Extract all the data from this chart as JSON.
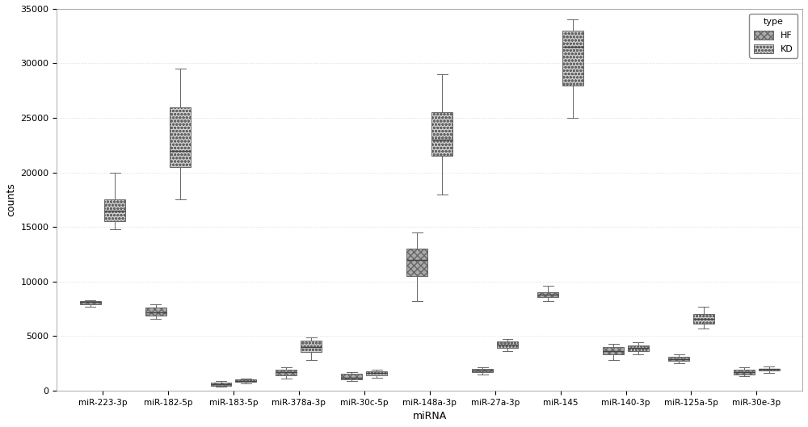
{
  "categories": [
    "miR-223-3p",
    "miR-182-5p",
    "miR-183-5p",
    "miR-378a-3p",
    "miR-30c-5p",
    "miR-148a-3p",
    "miR-27a-3p",
    "miR-145",
    "miR-140-3p",
    "miR-125a-5p",
    "miR-30e-3p"
  ],
  "ylabel": "counts",
  "xlabel": "miRNA",
  "ylim": [
    0,
    35000
  ],
  "yticks": [
    0,
    5000,
    10000,
    15000,
    20000,
    25000,
    30000,
    35000
  ],
  "hf_color": "#aaaaaa",
  "kd_color": "#d0d0d0",
  "groups": {
    "HF": {
      "miR-223-3p": {
        "q1": 7900,
        "median": 8100,
        "q3": 8200,
        "whislo": 7700,
        "whishi": 8300
      },
      "miR-182-5p": {
        "q1": 6900,
        "median": 7200,
        "q3": 7600,
        "whislo": 6600,
        "whishi": 7900
      },
      "miR-183-5p": {
        "q1": 450,
        "median": 550,
        "q3": 700,
        "whislo": 350,
        "whishi": 900
      },
      "miR-378a-3p": {
        "q1": 1400,
        "median": 1700,
        "q3": 1900,
        "whislo": 1100,
        "whishi": 2100
      },
      "miR-30c-5p": {
        "q1": 1050,
        "median": 1200,
        "q3": 1550,
        "whislo": 850,
        "whishi": 1650
      },
      "miR-148a-3p": {
        "q1": 10500,
        "median": 12000,
        "q3": 13000,
        "whislo": 8200,
        "whishi": 14500
      },
      "miR-27a-3p": {
        "q1": 1700,
        "median": 1850,
        "q3": 2000,
        "whislo": 1500,
        "whishi": 2100
      },
      "miR-145": {
        "q1": 8600,
        "median": 8800,
        "q3": 9000,
        "whislo": 8200,
        "whishi": 9600
      },
      "miR-140-3p": {
        "q1": 3300,
        "median": 3600,
        "q3": 4000,
        "whislo": 2800,
        "whishi": 4300
      },
      "miR-125a-5p": {
        "q1": 2700,
        "median": 2900,
        "q3": 3100,
        "whislo": 2500,
        "whishi": 3300
      },
      "miR-30e-3p": {
        "q1": 1500,
        "median": 1700,
        "q3": 1900,
        "whislo": 1300,
        "whishi": 2100
      }
    },
    "KD": {
      "miR-223-3p": {
        "q1": 15500,
        "median": 16500,
        "q3": 17500,
        "whislo": 14800,
        "whishi": 20000
      },
      "miR-182-5p": {
        "q1": 20500,
        "median": 22000,
        "q3": 26000,
        "whislo": 17500,
        "whishi": 29500
      },
      "miR-183-5p": {
        "q1": 800,
        "median": 900,
        "q3": 1000,
        "whislo": 650,
        "whishi": 1100
      },
      "miR-378a-3p": {
        "q1": 3500,
        "median": 4000,
        "q3": 4600,
        "whislo": 2800,
        "whishi": 4900
      },
      "miR-30c-5p": {
        "q1": 1400,
        "median": 1600,
        "q3": 1750,
        "whislo": 1200,
        "whishi": 1900
      },
      "miR-148a-3p": {
        "q1": 21500,
        "median": 23000,
        "q3": 25500,
        "whislo": 18000,
        "whishi": 29000
      },
      "miR-27a-3p": {
        "q1": 3900,
        "median": 4200,
        "q3": 4500,
        "whislo": 3600,
        "whishi": 4700
      },
      "miR-145": {
        "q1": 28000,
        "median": 31500,
        "q3": 33000,
        "whislo": 25000,
        "whishi": 34000
      },
      "miR-140-3p": {
        "q1": 3600,
        "median": 3900,
        "q3": 4100,
        "whislo": 3300,
        "whishi": 4400
      },
      "miR-125a-5p": {
        "q1": 6100,
        "median": 6600,
        "q3": 7000,
        "whislo": 5700,
        "whishi": 7700
      },
      "miR-30e-3p": {
        "q1": 1800,
        "median": 1950,
        "q3": 2000,
        "whislo": 1600,
        "whishi": 2200
      }
    }
  }
}
